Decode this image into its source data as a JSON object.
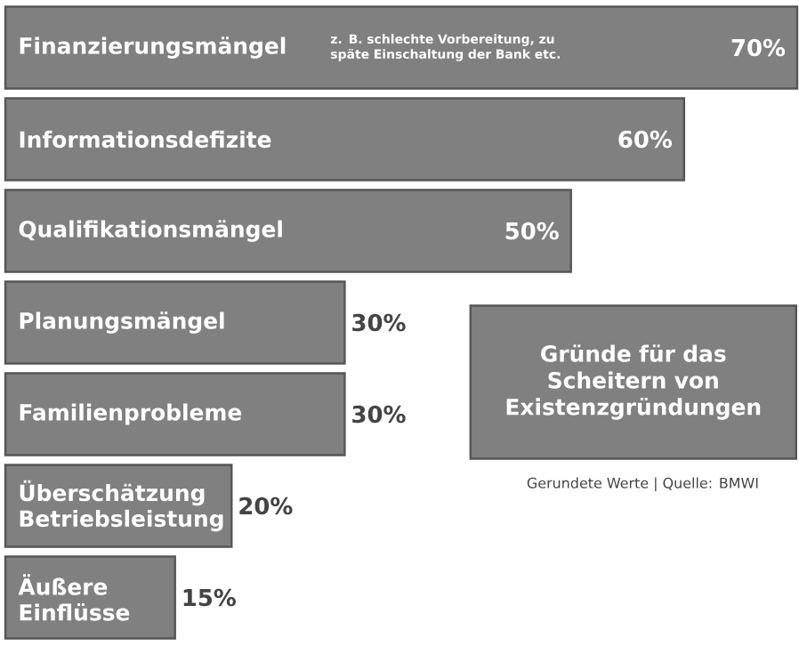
{
  "chart_data": {
    "type": "bar",
    "orientation": "horizontal",
    "title": "Gründe für das Scheitern von Existenzgründungen",
    "categories": [
      "Finanzierungsmängel",
      "Informationsdefizite",
      "Qualifikationsmängel",
      "Planungsmängel",
      "Familienprobleme",
      "Überschätzung Betriebsleistung",
      "Äußere Einflüsse"
    ],
    "values": [
      70,
      60,
      50,
      30,
      30,
      20,
      15
    ],
    "value_labels": [
      "70%",
      "60%",
      "50%",
      "30%",
      "30%",
      "20%",
      "15%"
    ],
    "color": "#808080",
    "annotations": [
      "z. B. schlechte Vorbereitung, zu späte Einschaltung der Bank etc.",
      "Gerundete Werte | Quelle: BMWI"
    ]
  }
}
